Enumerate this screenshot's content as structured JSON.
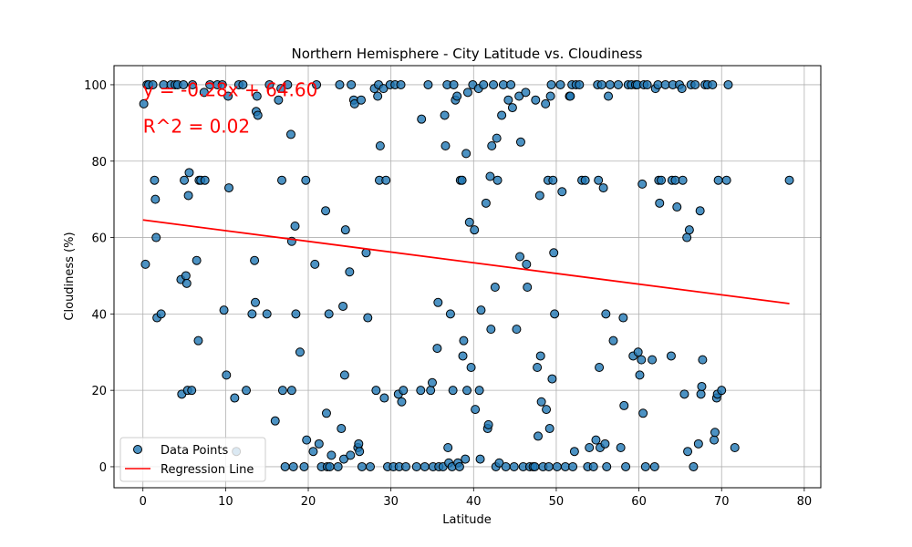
{
  "chart_data": {
    "type": "scatter",
    "title": "Northern Hemisphere - City Latitude vs. Cloudiness",
    "xlabel": "Latitude",
    "ylabel": "Cloudiness (%)",
    "xlim": [
      -3.5,
      82
    ],
    "ylim": [
      -5.5,
      105
    ],
    "xticks": [
      0,
      10,
      20,
      30,
      40,
      50,
      60,
      70,
      80
    ],
    "yticks": [
      0,
      20,
      40,
      60,
      80,
      100
    ],
    "grid": true,
    "legend_position": "lower-left",
    "colors": {
      "points": "#1f77b4",
      "regression": "#ff0000",
      "grid": "#b0b0b0"
    },
    "annotations": {
      "equation": "y = -0.28x + 64.60",
      "r_squared": "R^2 = 0.02"
    },
    "legend": {
      "points_label": "Data Points",
      "line_label": "Regression Line"
    },
    "regression": {
      "slope": -0.28,
      "intercept": 64.6,
      "x_range": [
        0,
        78.2
      ]
    },
    "series": [
      {
        "name": "Data Points",
        "points": [
          [
            0.1,
            95
          ],
          [
            0.3,
            53
          ],
          [
            0.5,
            100
          ],
          [
            0.7,
            100
          ],
          [
            1.2,
            100
          ],
          [
            1.4,
            75
          ],
          [
            1.5,
            70
          ],
          [
            1.6,
            60
          ],
          [
            1.7,
            39
          ],
          [
            2.2,
            40
          ],
          [
            2.5,
            100
          ],
          [
            3.4,
            100
          ],
          [
            3.9,
            100
          ],
          [
            4.2,
            100
          ],
          [
            4.6,
            49
          ],
          [
            4.7,
            19
          ],
          [
            4.9,
            100
          ],
          [
            5.0,
            75
          ],
          [
            5.2,
            50
          ],
          [
            5.3,
            48
          ],
          [
            5.4,
            20
          ],
          [
            5.5,
            71
          ],
          [
            5.6,
            77
          ],
          [
            5.9,
            20
          ],
          [
            6.0,
            100
          ],
          [
            6.5,
            54
          ],
          [
            6.7,
            33
          ],
          [
            6.8,
            75
          ],
          [
            7.0,
            75
          ],
          [
            7.4,
            98
          ],
          [
            7.5,
            75
          ],
          [
            8.1,
            100
          ],
          [
            9.0,
            100
          ],
          [
            9.6,
            100
          ],
          [
            9.8,
            41
          ],
          [
            10.1,
            24
          ],
          [
            10.3,
            97
          ],
          [
            10.4,
            73
          ],
          [
            11.1,
            18
          ],
          [
            11.3,
            4
          ],
          [
            11.6,
            100
          ],
          [
            12.1,
            100
          ],
          [
            12.5,
            20
          ],
          [
            13.2,
            40
          ],
          [
            13.5,
            54
          ],
          [
            13.6,
            43
          ],
          [
            13.7,
            93
          ],
          [
            13.8,
            97
          ],
          [
            13.9,
            92
          ],
          [
            15.0,
            40
          ],
          [
            15.3,
            100
          ],
          [
            16.0,
            12
          ],
          [
            16.4,
            96
          ],
          [
            16.7,
            99
          ],
          [
            16.8,
            75
          ],
          [
            16.9,
            20
          ],
          [
            17.2,
            0
          ],
          [
            17.5,
            100
          ],
          [
            17.9,
            87
          ],
          [
            18.0,
            20
          ],
          [
            18.0,
            59
          ],
          [
            18.2,
            0
          ],
          [
            18.4,
            63
          ],
          [
            18.5,
            40
          ],
          [
            19.0,
            30
          ],
          [
            19.5,
            0
          ],
          [
            19.7,
            75
          ],
          [
            19.8,
            7
          ],
          [
            20.6,
            4
          ],
          [
            20.8,
            53
          ],
          [
            21.0,
            100
          ],
          [
            21.3,
            6
          ],
          [
            21.6,
            0
          ],
          [
            22.1,
            67
          ],
          [
            22.2,
            14
          ],
          [
            22.3,
            0
          ],
          [
            22.5,
            40
          ],
          [
            22.6,
            0
          ],
          [
            22.8,
            3
          ],
          [
            23.6,
            0
          ],
          [
            23.8,
            100
          ],
          [
            24.0,
            10
          ],
          [
            24.2,
            42
          ],
          [
            24.3,
            2
          ],
          [
            24.4,
            24
          ],
          [
            24.5,
            62
          ],
          [
            25.0,
            51
          ],
          [
            25.1,
            3
          ],
          [
            25.2,
            100
          ],
          [
            25.5,
            96
          ],
          [
            25.6,
            95
          ],
          [
            26.0,
            5
          ],
          [
            26.1,
            6
          ],
          [
            26.2,
            4
          ],
          [
            26.4,
            96
          ],
          [
            26.5,
            0
          ],
          [
            27.0,
            56
          ],
          [
            27.2,
            39
          ],
          [
            27.5,
            0
          ],
          [
            28.0,
            99
          ],
          [
            28.2,
            20
          ],
          [
            28.4,
            97
          ],
          [
            28.5,
            100
          ],
          [
            28.6,
            75
          ],
          [
            28.7,
            84
          ],
          [
            29.1,
            99
          ],
          [
            29.2,
            18
          ],
          [
            29.4,
            75
          ],
          [
            29.6,
            0
          ],
          [
            29.9,
            100
          ],
          [
            30.3,
            0
          ],
          [
            30.5,
            100
          ],
          [
            30.9,
            19
          ],
          [
            31.0,
            0
          ],
          [
            31.2,
            100
          ],
          [
            31.3,
            17
          ],
          [
            31.5,
            20
          ],
          [
            31.8,
            0
          ],
          [
            33.1,
            0
          ],
          [
            33.6,
            20
          ],
          [
            33.7,
            91
          ],
          [
            34.1,
            0
          ],
          [
            34.5,
            100
          ],
          [
            34.8,
            20
          ],
          [
            35.0,
            22
          ],
          [
            35.1,
            0
          ],
          [
            35.6,
            31
          ],
          [
            35.7,
            43
          ],
          [
            35.8,
            0
          ],
          [
            36.3,
            0
          ],
          [
            36.5,
            92
          ],
          [
            36.6,
            84
          ],
          [
            36.8,
            100
          ],
          [
            36.9,
            5
          ],
          [
            37.0,
            1
          ],
          [
            37.2,
            40
          ],
          [
            37.4,
            0
          ],
          [
            37.5,
            20
          ],
          [
            37.6,
            100
          ],
          [
            37.8,
            96
          ],
          [
            38.0,
            97
          ],
          [
            38.1,
            1
          ],
          [
            38.3,
            0
          ],
          [
            38.4,
            75
          ],
          [
            38.6,
            75
          ],
          [
            38.7,
            29
          ],
          [
            38.8,
            33
          ],
          [
            39.0,
            2
          ],
          [
            39.1,
            82
          ],
          [
            39.2,
            20
          ],
          [
            39.3,
            98
          ],
          [
            39.5,
            64
          ],
          [
            39.7,
            26
          ],
          [
            39.9,
            100
          ],
          [
            40.1,
            62
          ],
          [
            40.2,
            15
          ],
          [
            40.6,
            99
          ],
          [
            40.7,
            20
          ],
          [
            40.8,
            2
          ],
          [
            40.9,
            41
          ],
          [
            41.2,
            100
          ],
          [
            41.5,
            69
          ],
          [
            41.7,
            10
          ],
          [
            41.8,
            11
          ],
          [
            42.0,
            76
          ],
          [
            42.1,
            36
          ],
          [
            42.2,
            84
          ],
          [
            42.4,
            100
          ],
          [
            42.6,
            47
          ],
          [
            42.7,
            0
          ],
          [
            42.8,
            86
          ],
          [
            42.9,
            75
          ],
          [
            43.1,
            1
          ],
          [
            43.4,
            92
          ],
          [
            43.6,
            100
          ],
          [
            43.9,
            0
          ],
          [
            44.2,
            96
          ],
          [
            44.5,
            100
          ],
          [
            44.7,
            94
          ],
          [
            44.9,
            0
          ],
          [
            45.2,
            36
          ],
          [
            45.5,
            97
          ],
          [
            45.6,
            55
          ],
          [
            45.7,
            85
          ],
          [
            46.0,
            0
          ],
          [
            46.3,
            98
          ],
          [
            46.4,
            53
          ],
          [
            46.5,
            47
          ],
          [
            46.8,
            0
          ],
          [
            47.2,
            0
          ],
          [
            47.4,
            0
          ],
          [
            47.5,
            96
          ],
          [
            47.7,
            26
          ],
          [
            47.8,
            8
          ],
          [
            48.0,
            71
          ],
          [
            48.1,
            29
          ],
          [
            48.2,
            17
          ],
          [
            48.4,
            0
          ],
          [
            48.7,
            95
          ],
          [
            48.8,
            15
          ],
          [
            49.0,
            75
          ],
          [
            49.1,
            0
          ],
          [
            49.2,
            10
          ],
          [
            49.3,
            97
          ],
          [
            49.4,
            100
          ],
          [
            49.5,
            23
          ],
          [
            49.6,
            75
          ],
          [
            49.7,
            56
          ],
          [
            49.8,
            40
          ],
          [
            50.1,
            0
          ],
          [
            50.5,
            100
          ],
          [
            50.7,
            72
          ],
          [
            51.1,
            0
          ],
          [
            51.6,
            97
          ],
          [
            51.7,
            97
          ],
          [
            51.9,
            100
          ],
          [
            52.0,
            0
          ],
          [
            52.2,
            4
          ],
          [
            52.4,
            100
          ],
          [
            52.8,
            100
          ],
          [
            53.1,
            75
          ],
          [
            53.5,
            75
          ],
          [
            53.8,
            0
          ],
          [
            54.0,
            5
          ],
          [
            54.5,
            0
          ],
          [
            54.8,
            7
          ],
          [
            55.0,
            100
          ],
          [
            55.1,
            75
          ],
          [
            55.2,
            26
          ],
          [
            55.3,
            5
          ],
          [
            55.5,
            100
          ],
          [
            55.7,
            73
          ],
          [
            55.9,
            6
          ],
          [
            56.0,
            40
          ],
          [
            56.1,
            0
          ],
          [
            56.3,
            97
          ],
          [
            56.5,
            100
          ],
          [
            56.9,
            33
          ],
          [
            57.5,
            100
          ],
          [
            57.8,
            5
          ],
          [
            58.1,
            39
          ],
          [
            58.2,
            16
          ],
          [
            58.4,
            0
          ],
          [
            58.7,
            100
          ],
          [
            59.1,
            100
          ],
          [
            59.3,
            29
          ],
          [
            59.6,
            100
          ],
          [
            59.8,
            100
          ],
          [
            59.9,
            30
          ],
          [
            60.1,
            24
          ],
          [
            60.3,
            28
          ],
          [
            60.4,
            74
          ],
          [
            60.5,
            14
          ],
          [
            60.6,
            100
          ],
          [
            60.8,
            0
          ],
          [
            61.0,
            100
          ],
          [
            61.6,
            28
          ],
          [
            61.9,
            0
          ],
          [
            62.0,
            99
          ],
          [
            62.3,
            100
          ],
          [
            62.4,
            75
          ],
          [
            62.5,
            69
          ],
          [
            62.7,
            75
          ],
          [
            63.2,
            100
          ],
          [
            63.9,
            29
          ],
          [
            64.0,
            75
          ],
          [
            64.1,
            100
          ],
          [
            64.4,
            75
          ],
          [
            64.6,
            68
          ],
          [
            64.9,
            100
          ],
          [
            65.2,
            99
          ],
          [
            65.3,
            75
          ],
          [
            65.5,
            19
          ],
          [
            65.8,
            60
          ],
          [
            65.9,
            4
          ],
          [
            66.1,
            62
          ],
          [
            66.3,
            100
          ],
          [
            66.6,
            0
          ],
          [
            66.8,
            100
          ],
          [
            67.2,
            6
          ],
          [
            67.4,
            67
          ],
          [
            67.5,
            19
          ],
          [
            67.6,
            21
          ],
          [
            67.7,
            28
          ],
          [
            68.0,
            100
          ],
          [
            68.3,
            100
          ],
          [
            68.9,
            100
          ],
          [
            69.1,
            7
          ],
          [
            69.2,
            9
          ],
          [
            69.4,
            18
          ],
          [
            69.5,
            19
          ],
          [
            69.6,
            75
          ],
          [
            70.0,
            20
          ],
          [
            70.6,
            75
          ],
          [
            70.8,
            100
          ],
          [
            71.6,
            5
          ],
          [
            78.2,
            75
          ]
        ]
      }
    ]
  }
}
